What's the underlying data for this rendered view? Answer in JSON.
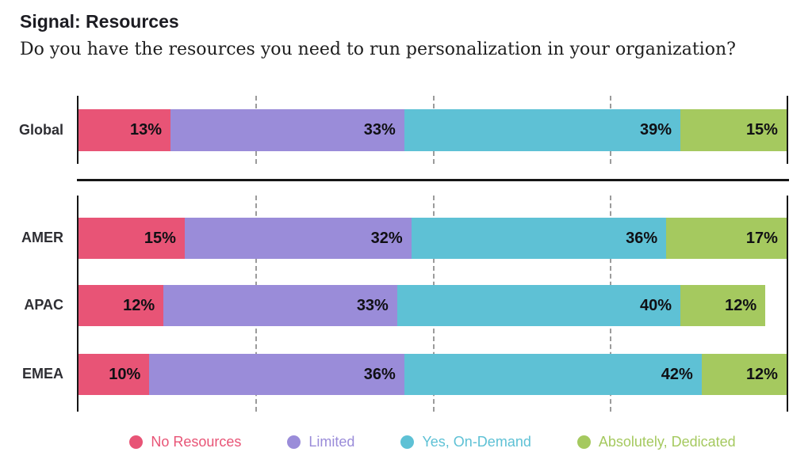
{
  "header": {
    "title": "Signal: Resources",
    "subtitle": "Do you have the resources you need to run personalization in your organization?"
  },
  "chart_data": {
    "type": "bar",
    "stacked": true,
    "orientation": "horizontal",
    "unit": "%",
    "xlim": [
      0,
      100
    ],
    "gridlines_percent": [
      25,
      50,
      75
    ],
    "categories": [
      "Global",
      "AMER",
      "APAC",
      "EMEA"
    ],
    "groups": [
      [
        "Global"
      ],
      [
        "AMER",
        "APAC",
        "EMEA"
      ]
    ],
    "series": [
      {
        "name": "No Resources",
        "color": "#E85476",
        "values": [
          13,
          15,
          12,
          10
        ]
      },
      {
        "name": "Limited",
        "color": "#9A8CD9",
        "values": [
          33,
          32,
          33,
          36
        ]
      },
      {
        "name": "Yes, On-Demand",
        "color": "#5EC1D5",
        "values": [
          39,
          36,
          40,
          42
        ]
      },
      {
        "name": "Absolutely, Dedicated",
        "color": "#A5C95F",
        "values": [
          15,
          17,
          12,
          12
        ]
      }
    ],
    "value_labels": true,
    "legend_position": "bottom"
  },
  "style": {
    "axis_color": "#161616",
    "gridline_color": "#9b9b9b",
    "value_label_color": "#101014",
    "row_label_color": "#2e2e33"
  }
}
